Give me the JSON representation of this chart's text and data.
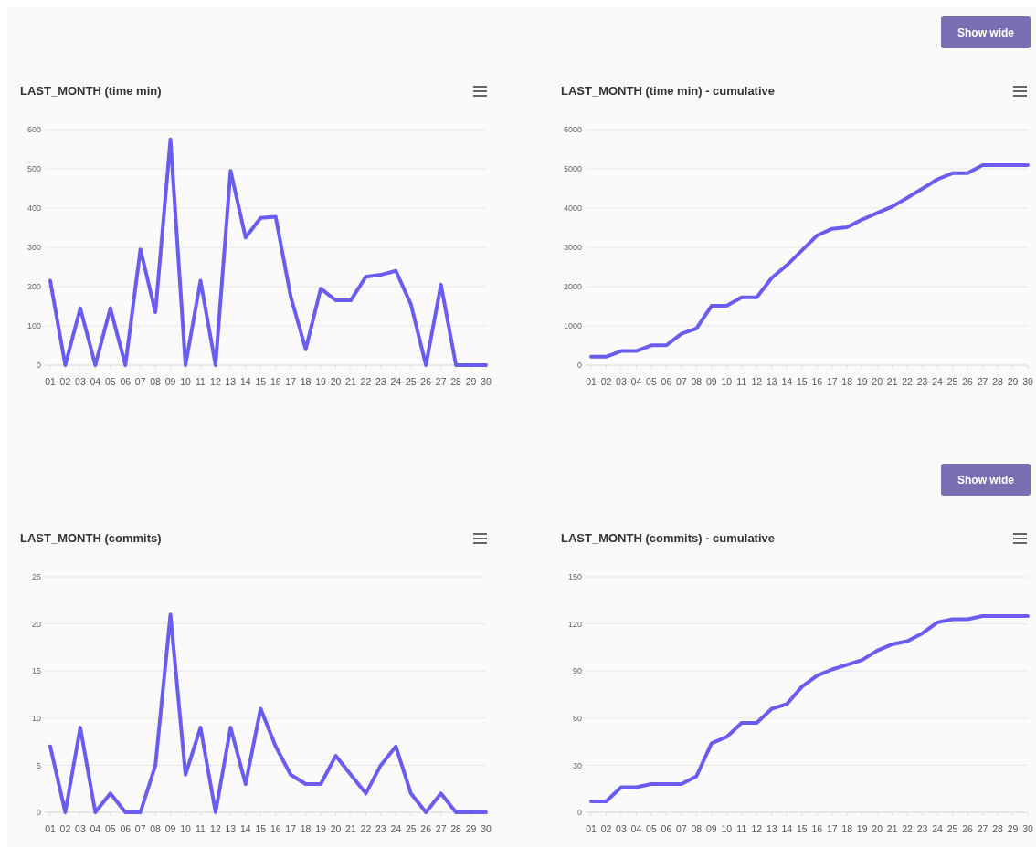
{
  "chart_data": [
    {
      "type": "line",
      "title": "LAST_MONTH (time min)",
      "categories": [
        "01",
        "02",
        "03",
        "04",
        "05",
        "06",
        "07",
        "08",
        "09",
        "10",
        "11",
        "12",
        "13",
        "14",
        "15",
        "16",
        "17",
        "18",
        "19",
        "20",
        "21",
        "22",
        "23",
        "24",
        "25",
        "26",
        "27",
        "28",
        "29",
        "30"
      ],
      "series": [
        {
          "color": "#6b5cf0",
          "values": [
            215,
            0,
            145,
            0,
            145,
            0,
            295,
            135,
            575,
            0,
            215,
            0,
            495,
            325,
            375,
            378,
            175,
            40,
            195,
            165,
            165,
            225,
            230,
            240,
            155,
            0,
            205,
            0,
            0,
            0
          ]
        }
      ],
      "ylim": [
        0,
        600
      ],
      "yticks": [
        0,
        100,
        200,
        300,
        400,
        500,
        600
      ],
      "grid": "y",
      "marker": "none",
      "line_style": "solid"
    },
    {
      "type": "line",
      "title": "LAST_MONTH (time min) - cumulative",
      "annotations": [
        "Show wide"
      ],
      "categories": [
        "01",
        "02",
        "03",
        "04",
        "05",
        "06",
        "07",
        "08",
        "09",
        "10",
        "11",
        "12",
        "13",
        "14",
        "15",
        "16",
        "17",
        "18",
        "19",
        "20",
        "21",
        "22",
        "23",
        "24",
        "25",
        "26",
        "27",
        "28",
        "29",
        "30"
      ],
      "series": [
        {
          "color": "#6b5cf0",
          "values": [
            215,
            215,
            360,
            360,
            505,
            505,
            800,
            935,
            1510,
            1510,
            1725,
            1725,
            2220,
            2545,
            2920,
            3298,
            3473,
            3513,
            3708,
            3873,
            4038,
            4263,
            4493,
            4733,
            4888,
            4888,
            5093,
            5093,
            5093,
            5093
          ]
        }
      ],
      "ylim": [
        0,
        6000
      ],
      "yticks": [
        0,
        1000,
        2000,
        3000,
        4000,
        5000,
        6000
      ],
      "grid": "y",
      "marker": "none",
      "line_style": "solid"
    },
    {
      "type": "line",
      "title": "LAST_MONTH (commits)",
      "categories": [
        "01",
        "02",
        "03",
        "04",
        "05",
        "06",
        "07",
        "08",
        "09",
        "10",
        "11",
        "12",
        "13",
        "14",
        "15",
        "16",
        "17",
        "18",
        "19",
        "20",
        "21",
        "22",
        "23",
        "24",
        "25",
        "26",
        "27",
        "28",
        "29",
        "30"
      ],
      "series": [
        {
          "color": "#6b5cf0",
          "values": [
            7,
            0,
            9,
            0,
            2,
            0,
            0,
            5,
            21,
            4,
            9,
            0,
            9,
            3,
            11,
            7,
            4,
            3,
            3,
            6,
            4,
            2,
            5,
            7,
            2,
            0,
            2,
            0,
            0,
            0
          ]
        }
      ],
      "ylim": [
        0,
        25
      ],
      "yticks": [
        0,
        5,
        10,
        15,
        20,
        25
      ],
      "grid": "y",
      "marker": "none",
      "line_style": "solid"
    },
    {
      "type": "line",
      "title": "LAST_MONTH (commits) - cumulative",
      "annotations": [
        "Show wide"
      ],
      "categories": [
        "01",
        "02",
        "03",
        "04",
        "05",
        "06",
        "07",
        "08",
        "09",
        "10",
        "11",
        "12",
        "13",
        "14",
        "15",
        "16",
        "17",
        "18",
        "19",
        "20",
        "21",
        "22",
        "23",
        "24",
        "25",
        "26",
        "27",
        "28",
        "29",
        "30"
      ],
      "series": [
        {
          "color": "#6b5cf0",
          "values": [
            7,
            7,
            16,
            16,
            18,
            18,
            18,
            23,
            44,
            48,
            57,
            57,
            66,
            69,
            80,
            87,
            91,
            94,
            97,
            103,
            107,
            109,
            114,
            121,
            123,
            123,
            125,
            125,
            125,
            125
          ]
        }
      ],
      "ylim": [
        0,
        150
      ],
      "yticks": [
        0,
        30,
        60,
        90,
        120,
        150
      ],
      "grid": "y",
      "marker": "none",
      "line_style": "solid"
    }
  ]
}
